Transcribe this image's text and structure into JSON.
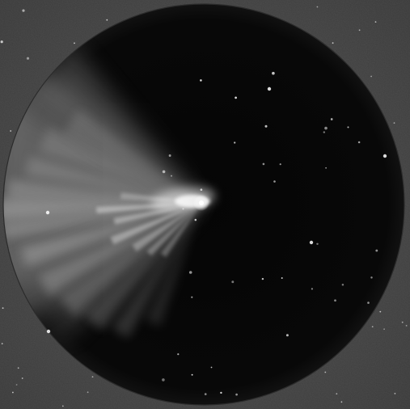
{
  "image": {
    "subject": "comet-with-fanned-tail",
    "palette": {
      "outer_field": "#464646",
      "outer_field_edge": "#3a3a3a",
      "disk": "#060606",
      "disk_edge": "#0d0d0d",
      "glow": "#bdbdbd",
      "nucleus": "#ffffff",
      "star": "#e8e8e8"
    },
    "star_count_in_disk": 40,
    "star_count_outside_disk": 30
  }
}
